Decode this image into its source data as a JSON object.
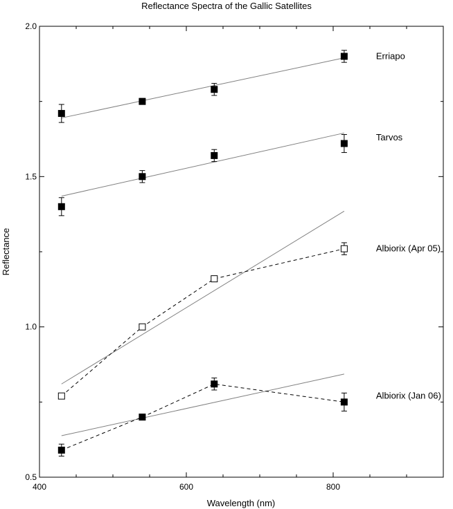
{
  "chart_data": {
    "type": "scatter",
    "title": "Reflectance Spectra of the Gallic Satellites",
    "xlabel": "Wavelength (nm)",
    "ylabel": "Reflectance",
    "xlim": [
      400,
      950
    ],
    "ylim": [
      0.5,
      2.0
    ],
    "xticks": [
      400,
      600,
      800
    ],
    "xtick_labels": [
      "400",
      "600",
      "800"
    ],
    "yticks": [
      0.5,
      1.0,
      1.5,
      2.0
    ],
    "ytick_labels": [
      "0.5",
      "1.0",
      "1.5",
      "2.0"
    ],
    "grid": false,
    "series": [
      {
        "name": "Erriapo",
        "marker": "filled-square",
        "connect": "none",
        "x": [
          430,
          540,
          638,
          815
        ],
        "y": [
          1.71,
          1.75,
          1.79,
          1.9
        ],
        "err": [
          0.03,
          0.01,
          0.02,
          0.02
        ],
        "fit": [
          [
            430,
            1.695
          ],
          [
            815,
            1.895
          ]
        ],
        "label_at": [
          815,
          1.9
        ]
      },
      {
        "name": "Tarvos",
        "marker": "filled-square",
        "connect": "none",
        "x": [
          430,
          540,
          638,
          815
        ],
        "y": [
          1.4,
          1.5,
          1.57,
          1.61
        ],
        "err": [
          0.03,
          0.02,
          0.02,
          0.03
        ],
        "fit": [
          [
            430,
            1.435
          ],
          [
            815,
            1.645
          ]
        ],
        "label_at": [
          815,
          1.63
        ]
      },
      {
        "name": "Albiorix (Apr 05)",
        "marker": "open-square",
        "connect": "dashed",
        "x": [
          430,
          540,
          638,
          815
        ],
        "y": [
          0.77,
          1.0,
          1.16,
          1.26
        ],
        "err": [
          0.0,
          0.0,
          0.0,
          0.02
        ],
        "fit": [
          [
            430,
            0.81
          ],
          [
            815,
            1.385
          ]
        ],
        "label_at": [
          815,
          1.26
        ]
      },
      {
        "name": "Albiorix (Jan 06)",
        "marker": "filled-square",
        "connect": "dashed",
        "x": [
          430,
          540,
          638,
          815
        ],
        "y": [
          0.59,
          0.7,
          0.81,
          0.75
        ],
        "err": [
          0.02,
          0.0,
          0.02,
          0.03
        ],
        "fit": [
          [
            430,
            0.638
          ],
          [
            815,
            0.843
          ]
        ],
        "label_at": [
          815,
          0.77
        ]
      }
    ]
  }
}
